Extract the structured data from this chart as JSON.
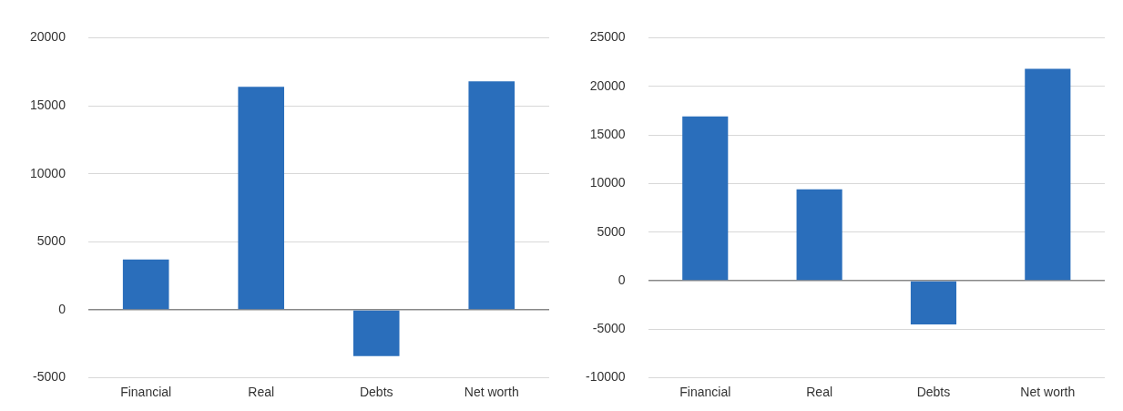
{
  "chart_data": [
    {
      "type": "bar",
      "categories": [
        "Financial",
        "Real",
        "Debts",
        "Net worth"
      ],
      "values": [
        3700,
        16400,
        -3400,
        16800
      ],
      "color": "#2a6ebb",
      "ylim": [
        -5000,
        20000
      ],
      "yticks": [
        -5000,
        0,
        5000,
        10000,
        15000,
        20000
      ],
      "grid": "y",
      "legend": false
    },
    {
      "type": "bar",
      "categories": [
        "Financial",
        "Real",
        "Debts",
        "Net worth"
      ],
      "values": [
        16900,
        9400,
        -4500,
        21800
      ],
      "color": "#2a6ebb",
      "ylim": [
        -10000,
        25000
      ],
      "yticks": [
        -10000,
        -5000,
        0,
        5000,
        10000,
        15000,
        20000,
        25000
      ],
      "grid": "y",
      "legend": false
    }
  ]
}
